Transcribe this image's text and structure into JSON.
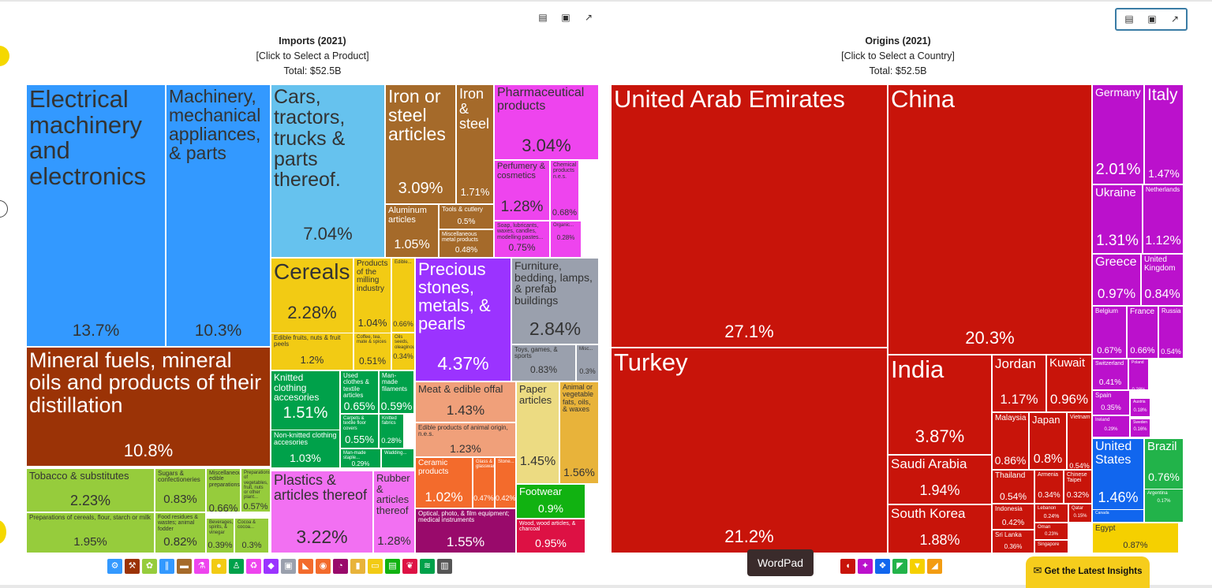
{
  "chart_data": [
    {
      "type": "treemap",
      "title": "Imports (2021)",
      "subtitle": "[Click to Select a Product]",
      "total": "Total: $52.5B",
      "cells": [
        {
          "label": "Electrical machinery and electronics",
          "value": "13.7%",
          "color": "#3399ff"
        },
        {
          "label": "Machinery, mechanical appliances, & parts",
          "value": "10.3%",
          "color": "#3399ff"
        },
        {
          "label": "Cars, tractors, trucks & parts thereof.",
          "value": "7.04%",
          "color": "#66c2ee"
        },
        {
          "label": "Iron or steel articles",
          "value": "3.09%",
          "color": "#a56a2a"
        },
        {
          "label": "Iron & steel",
          "value": "1.71%",
          "color": "#a56a2a"
        },
        {
          "label": "Aluminum articles",
          "value": "1.05%",
          "color": "#a56a2a"
        },
        {
          "label": "Tools & cutlery",
          "value": "0.5%",
          "color": "#a56a2a"
        },
        {
          "label": "Miscellaneous metal products",
          "value": "0.48%",
          "color": "#a56a2a"
        },
        {
          "label": "Pharmaceutical products",
          "value": "3.04%",
          "color": "#ee44ee"
        },
        {
          "label": "Perfumery & cosmetics",
          "value": "1.28%",
          "color": "#ee44ee"
        },
        {
          "label": "Chemical products n.e.s.",
          "value": "0.68%",
          "color": "#ee44ee"
        },
        {
          "label": "Soap, lubricants, waxes, candles, modelling pastes...",
          "value": "0.75%",
          "color": "#ee44ee"
        },
        {
          "label": "Organic...",
          "value": "0.28%",
          "color": "#ee44ee"
        },
        {
          "label": "Mineral fuels, mineral oils and products of their distillation",
          "value": "10.8%",
          "color": "#9b3306"
        },
        {
          "label": "Cereals",
          "value": "2.28%",
          "color": "#f2cb14"
        },
        {
          "label": "Products of the milling industry",
          "value": "1.04%",
          "color": "#f2cb14"
        },
        {
          "label": "Edible fruits, nuts & fruit peels",
          "value": "1.2%",
          "color": "#f2cb14"
        },
        {
          "label": "Coffee, tea, mate & spices",
          "value": "0.51%",
          "color": "#f2cb14"
        },
        {
          "label": "Oils seeds, oleaginous...",
          "value": "0.34%",
          "color": "#f2cb14"
        },
        {
          "label": "Edible...",
          "value": "0.66%",
          "color": "#f2cb14"
        },
        {
          "label": "Precious stones, metals, & pearls",
          "value": "4.37%",
          "color": "#9b33ff"
        },
        {
          "label": "Furniture, bedding, lamps, & prefab buildings",
          "value": "2.84%",
          "color": "#9aa0ad"
        },
        {
          "label": "Toys, games, & sports",
          "value": "0.83%",
          "color": "#9aa0ad"
        },
        {
          "label": "Misc...",
          "value": "0.3%",
          "color": "#9aa0ad"
        },
        {
          "label": "Knitted clothing accesories",
          "value": "1.51%",
          "color": "#00a14a"
        },
        {
          "label": "Used clothes & textile articles",
          "value": "0.65%",
          "color": "#00a14a"
        },
        {
          "label": "Man-made filaments",
          "value": "0.59%",
          "color": "#00a14a"
        },
        {
          "label": "Non-knitted clothing accesories",
          "value": "1.03%",
          "color": "#00a14a"
        },
        {
          "label": "Carpets & textile floor covers",
          "value": "0.55%",
          "color": "#00a14a"
        },
        {
          "label": "Knitted fabrics",
          "value": "0.28%",
          "color": "#00a14a"
        },
        {
          "label": "Man-made staple...",
          "value": "0.29%",
          "color": "#00a14a"
        },
        {
          "label": "Wadding...",
          "value": "",
          "color": "#00a14a"
        },
        {
          "label": "Meat & edible offal",
          "value": "1.43%",
          "color": "#f0a07a"
        },
        {
          "label": "Edible products of animal origin, n.e.s.",
          "value": "1.23%",
          "color": "#f0a07a"
        },
        {
          "label": "Paper articles",
          "value": "1.45%",
          "color": "#ecdb82"
        },
        {
          "label": "Animal or vegetable fats, oils, & waxes",
          "value": "1.56%",
          "color": "#e8b33a"
        },
        {
          "label": "Tobacco & substitutes",
          "value": "2.23%",
          "color": "#96cc3c"
        },
        {
          "label": "Sugars & confectioneries",
          "value": "0.83%",
          "color": "#96cc3c"
        },
        {
          "label": "Miscellaneous edible preparations",
          "value": "0.66%",
          "color": "#96cc3c"
        },
        {
          "label": "Preparations of vegetables, fruit, nuts or other plant...",
          "value": "0.57%",
          "color": "#96cc3c"
        },
        {
          "label": "Preparations of cereals, flour, starch or milk",
          "value": "1.95%",
          "color": "#96cc3c"
        },
        {
          "label": "Food residues & wastes; animal fodder",
          "value": "0.82%",
          "color": "#96cc3c"
        },
        {
          "label": "Beverages, spirits, & vinegar",
          "value": "0.39%",
          "color": "#96cc3c"
        },
        {
          "label": "Cocoa & cocoa...",
          "value": "0.3%",
          "color": "#96cc3c"
        },
        {
          "label": "Plastics & articles thereof",
          "value": "3.22%",
          "color": "#f270f2"
        },
        {
          "label": "Rubber & articles thereof",
          "value": "1.28%",
          "color": "#f270f2"
        },
        {
          "label": "Ceramic products",
          "value": "1.02%",
          "color": "#f36b2c"
        },
        {
          "label": "Glass & glassware...",
          "value": "0.47%",
          "color": "#f36b2c"
        },
        {
          "label": "Stone...",
          "value": "0.42%",
          "color": "#f36b2c"
        },
        {
          "label": "Optical, photo, & film equipment; medical instruments",
          "value": "1.55%",
          "color": "#990a6b"
        },
        {
          "label": "Footwear",
          "value": "0.9%",
          "color": "#11b211"
        },
        {
          "label": "Wood, wood articles, & charcoal",
          "value": "0.95%",
          "color": "#dd1144"
        }
      ]
    },
    {
      "type": "treemap",
      "title": "Origins (2021)",
      "subtitle": "[Click to Select a Country]",
      "total": "Total: $52.5B",
      "cells": [
        {
          "label": "United Arab Emirates",
          "value": "27.1%",
          "color": "#c8140a"
        },
        {
          "label": "China",
          "value": "20.3%",
          "color": "#c8140a"
        },
        {
          "label": "Turkey",
          "value": "21.2%",
          "color": "#c8140a"
        },
        {
          "label": "India",
          "value": "3.87%",
          "color": "#c8140a"
        },
        {
          "label": "Jordan",
          "value": "1.17%",
          "color": "#c8140a"
        },
        {
          "label": "Kuwait",
          "value": "0.96%",
          "color": "#c8140a"
        },
        {
          "label": "Malaysia",
          "value": "0.86%",
          "color": "#c8140a"
        },
        {
          "label": "Japan",
          "value": "0.8%",
          "color": "#c8140a"
        },
        {
          "label": "Vietnam",
          "value": "0.54%",
          "color": "#c8140a"
        },
        {
          "label": "Saudi Arabia",
          "value": "1.94%",
          "color": "#c8140a"
        },
        {
          "label": "Thailand",
          "value": "0.54%",
          "color": "#c8140a"
        },
        {
          "label": "Armenia",
          "value": "0.34%",
          "color": "#c8140a"
        },
        {
          "label": "Chinese Taipei",
          "value": "0.32%",
          "color": "#c8140a"
        },
        {
          "label": "South Korea",
          "value": "1.88%",
          "color": "#c8140a"
        },
        {
          "label": "Indonesia",
          "value": "0.42%",
          "color": "#c8140a"
        },
        {
          "label": "Lebanon",
          "value": "0.24%",
          "color": "#c8140a"
        },
        {
          "label": "Qatar",
          "value": "0.15%",
          "color": "#c8140a"
        },
        {
          "label": "Sri Lanka",
          "value": "0.36%",
          "color": "#c8140a"
        },
        {
          "label": "Oman",
          "value": "0.23%",
          "color": "#c8140a"
        },
        {
          "label": "Singapore",
          "value": "",
          "color": "#c8140a"
        },
        {
          "label": "Germany",
          "value": "2.01%",
          "color": "#bb11cc"
        },
        {
          "label": "Italy",
          "value": "1.47%",
          "color": "#bb11cc"
        },
        {
          "label": "Ukraine",
          "value": "1.31%",
          "color": "#bb11cc"
        },
        {
          "label": "Netherlands",
          "value": "1.12%",
          "color": "#bb11cc"
        },
        {
          "label": "Greece",
          "value": "0.97%",
          "color": "#bb11cc"
        },
        {
          "label": "United Kingdom",
          "value": "0.84%",
          "color": "#bb11cc"
        },
        {
          "label": "Belgium",
          "value": "0.67%",
          "color": "#bb11cc"
        },
        {
          "label": "France",
          "value": "0.66%",
          "color": "#bb11cc"
        },
        {
          "label": "Russia",
          "value": "0.54%",
          "color": "#bb11cc"
        },
        {
          "label": "Switzerland",
          "value": "0.41%",
          "color": "#bb11cc"
        },
        {
          "label": "Poland",
          "value": "0.28%",
          "color": "#bb11cc"
        },
        {
          "label": "Spain",
          "value": "0.35%",
          "color": "#bb11cc"
        },
        {
          "label": "Austria",
          "value": "0.18%",
          "color": "#bb11cc"
        },
        {
          "label": "Ireland",
          "value": "0.29%",
          "color": "#bb11cc"
        },
        {
          "label": "Sweden",
          "value": "0.16%",
          "color": "#bb11cc"
        },
        {
          "label": "United States",
          "value": "1.46%",
          "color": "#1166ee"
        },
        {
          "label": "Canada",
          "value": "",
          "color": "#1166ee"
        },
        {
          "label": "Brazil",
          "value": "0.76%",
          "color": "#22b34a"
        },
        {
          "label": "Argentina",
          "value": "0.17%",
          "color": "#22b34a"
        },
        {
          "label": "Egypt",
          "value": "0.87%",
          "color": "#f5d000"
        }
      ]
    }
  ],
  "ui": {
    "tooltip": "WordPad",
    "cta_label": "Get the Latest Insights",
    "cta_icon": "envelope-icon",
    "toolbar_icons": [
      "table-icon",
      "image-icon",
      "share-icon"
    ],
    "product_filter_icons": [
      "gear-icon",
      "tool-icon",
      "plant-icon",
      "road-icon",
      "box-icon",
      "flask-icon",
      "fruit-icon",
      "shirt-icon",
      "recycle-icon",
      "gem-icon",
      "package-icon",
      "shoe-icon",
      "ball-icon",
      "gauge-icon",
      "bottle-icon",
      "car-icon",
      "train-icon",
      "leaf-icon",
      "textile-icon",
      "easel-icon"
    ],
    "product_filter_colors": [
      "#3399ff",
      "#9b3306",
      "#96cc3c",
      "#3399ff",
      "#a56a2a",
      "#ee44ee",
      "#f2cb14",
      "#00a14a",
      "#ee44ee",
      "#9b33ff",
      "#9aa0ad",
      "#f36b2c",
      "#f36b2c",
      "#990a6b",
      "#e8b33a",
      "#f2cb14",
      "#11b211",
      "#dd1144",
      "#00a14a",
      "#555555"
    ],
    "region_filter_icons": [
      "africa-icon",
      "asia-icon",
      "europe-icon",
      "north-america-icon",
      "south-america-icon",
      "oceania-icon"
    ],
    "region_filter_colors": [
      "#c8140a",
      "#bb11cc",
      "#1166ee",
      "#22b34a",
      "#f5d000",
      "#f39c12"
    ]
  }
}
